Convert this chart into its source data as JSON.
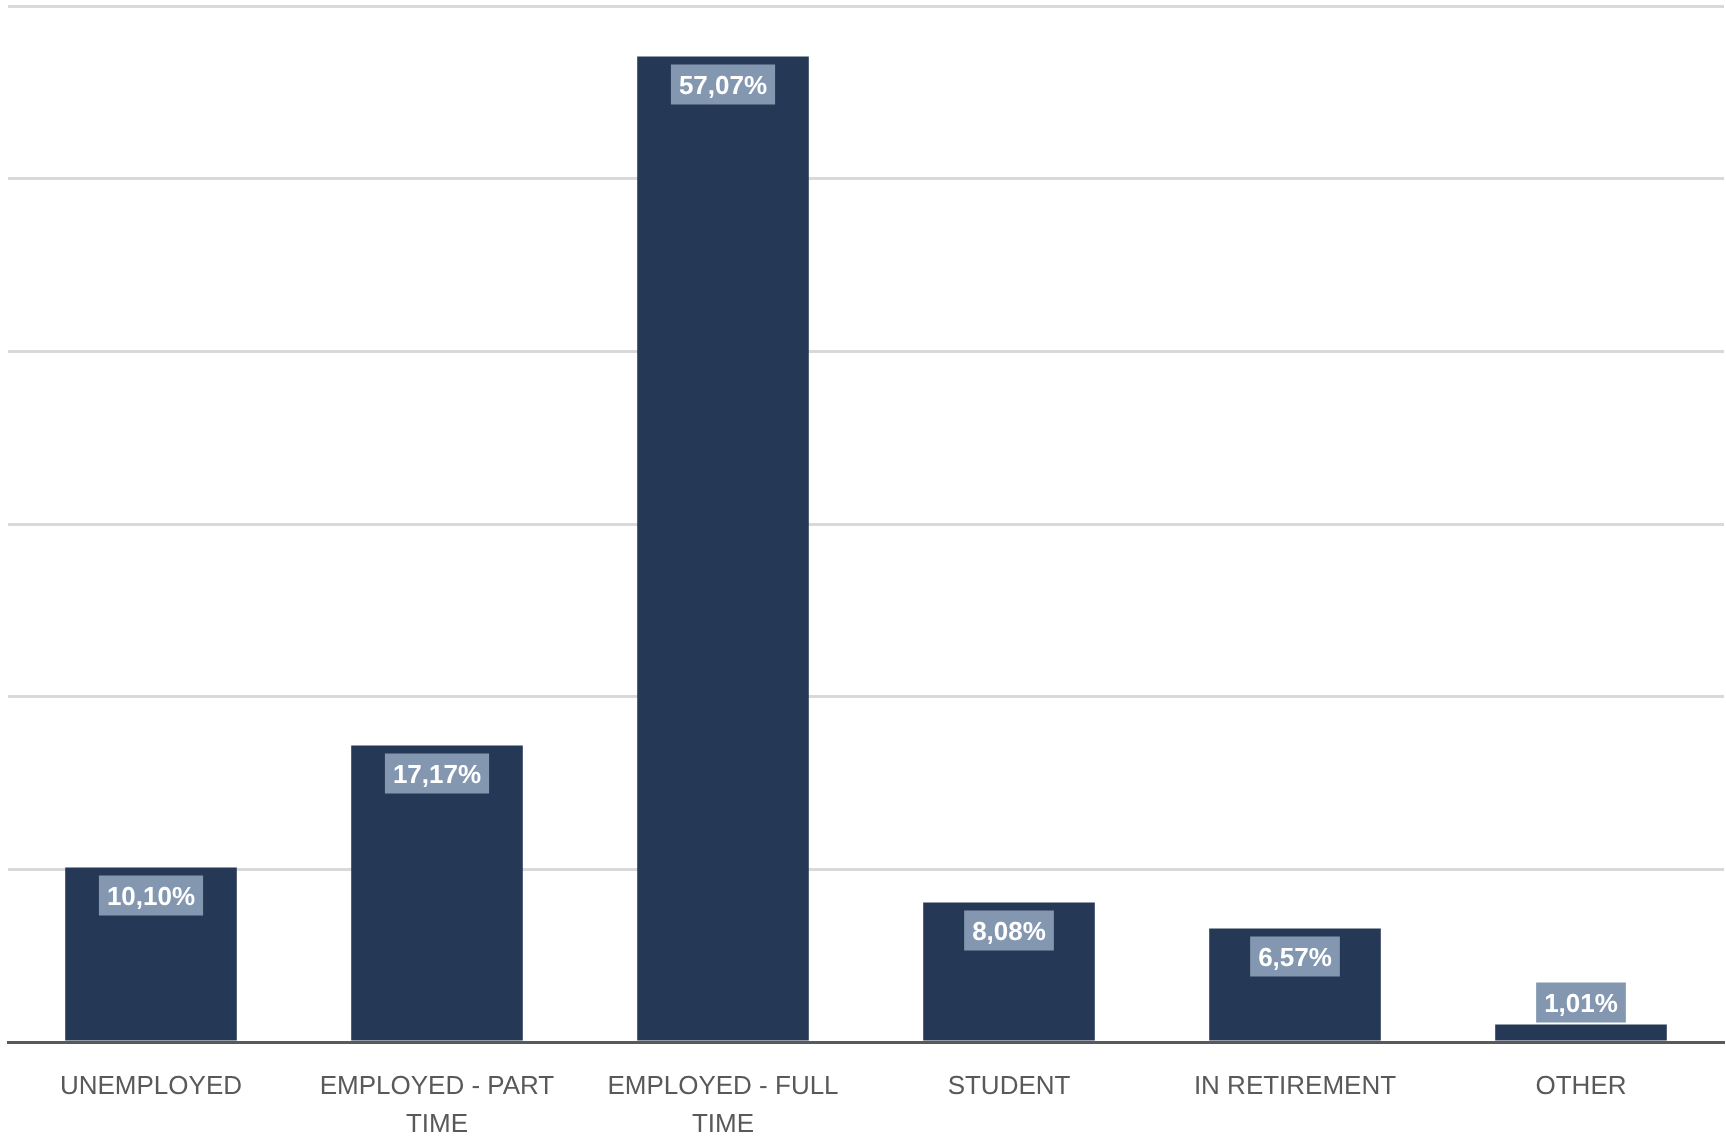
{
  "chart_data": {
    "type": "bar",
    "categories": [
      "UNEMPLOYED",
      "EMPLOYED - PART TIME",
      "EMPLOYED - FULL TIME",
      "STUDENT",
      "IN RETIREMENT",
      "OTHER"
    ],
    "values": [
      10.1,
      17.17,
      57.07,
      8.08,
      6.57,
      1.01
    ],
    "value_labels": [
      "10,10%",
      "17,17%",
      "57,07%",
      "8,08%",
      "6,57%",
      "1,01%"
    ],
    "color": "#253856",
    "ylim": [
      0,
      60
    ],
    "yticks": [
      {
        "value": 0,
        "label": null
      },
      {
        "value": 10,
        "label": null
      },
      {
        "value": 20,
        "label": null
      },
      {
        "value": 30,
        "label": null
      },
      {
        "value": 40,
        "label": null
      },
      {
        "value": 50,
        "label": null
      },
      {
        "value": 60,
        "label": null
      }
    ],
    "grid": "y",
    "tick_labels": "x"
  }
}
